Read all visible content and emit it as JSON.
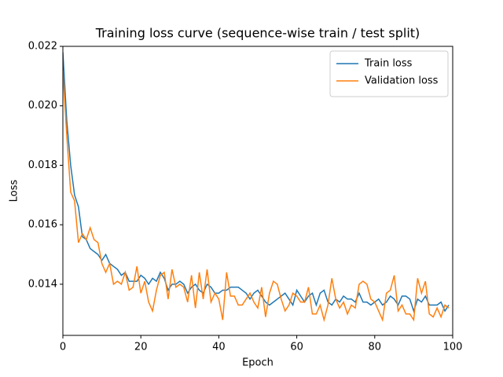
{
  "chart_data": {
    "type": "line",
    "title": "Training loss curve (sequence-wise train / test split)",
    "xlabel": "Epoch",
    "ylabel": "Loss",
    "x": [
      0,
      1,
      2,
      3,
      4,
      5,
      6,
      7,
      8,
      9,
      10,
      11,
      12,
      13,
      14,
      15,
      16,
      17,
      18,
      19,
      20,
      21,
      22,
      23,
      24,
      25,
      26,
      27,
      28,
      29,
      30,
      31,
      32,
      33,
      34,
      35,
      36,
      37,
      38,
      39,
      40,
      41,
      42,
      43,
      44,
      45,
      46,
      47,
      48,
      49,
      50,
      51,
      52,
      53,
      54,
      55,
      56,
      57,
      58,
      59,
      60,
      61,
      62,
      63,
      64,
      65,
      66,
      67,
      68,
      69,
      70,
      71,
      72,
      73,
      74,
      75,
      76,
      77,
      78,
      79,
      80,
      81,
      82,
      83,
      84,
      85,
      86,
      87,
      88,
      89,
      90,
      91,
      92,
      93,
      94,
      95,
      96,
      97,
      98,
      99
    ],
    "series": [
      {
        "name": "Train loss",
        "color": "#1f77b4",
        "values": [
          0.0218,
          0.0195,
          0.018,
          0.017,
          0.0166,
          0.0156,
          0.0155,
          0.0152,
          0.0151,
          0.015,
          0.0148,
          0.015,
          0.0147,
          0.0146,
          0.0145,
          0.0143,
          0.0144,
          0.0141,
          0.0141,
          0.0141,
          0.0143,
          0.0142,
          0.014,
          0.0142,
          0.0141,
          0.0144,
          0.0142,
          0.0138,
          0.014,
          0.014,
          0.0141,
          0.014,
          0.0137,
          0.0139,
          0.014,
          0.0138,
          0.0137,
          0.014,
          0.0139,
          0.0137,
          0.0137,
          0.0138,
          0.0138,
          0.0139,
          0.0139,
          0.0139,
          0.0138,
          0.0137,
          0.0135,
          0.0137,
          0.0138,
          0.0136,
          0.0134,
          0.0133,
          0.0134,
          0.0135,
          0.0136,
          0.0137,
          0.0135,
          0.0133,
          0.0138,
          0.0136,
          0.0134,
          0.0136,
          0.0137,
          0.0133,
          0.0137,
          0.0138,
          0.0134,
          0.0133,
          0.0135,
          0.0134,
          0.0136,
          0.0135,
          0.0135,
          0.0134,
          0.0137,
          0.0134,
          0.0134,
          0.0133,
          0.0134,
          0.0135,
          0.0133,
          0.0134,
          0.0136,
          0.0135,
          0.0133,
          0.0136,
          0.0136,
          0.0135,
          0.0131,
          0.0135,
          0.0134,
          0.0136,
          0.0133,
          0.0133,
          0.0133,
          0.0134,
          0.0131,
          0.0133
        ]
      },
      {
        "name": "Validation loss",
        "color": "#ff7f0e",
        "values": [
          0.0212,
          0.019,
          0.0171,
          0.0168,
          0.0154,
          0.0157,
          0.0155,
          0.0159,
          0.0155,
          0.0154,
          0.0147,
          0.0144,
          0.0147,
          0.014,
          0.0141,
          0.014,
          0.0144,
          0.0138,
          0.0139,
          0.0146,
          0.0137,
          0.0141,
          0.0134,
          0.0131,
          0.0138,
          0.0143,
          0.0144,
          0.0135,
          0.0145,
          0.0139,
          0.014,
          0.0139,
          0.0134,
          0.0143,
          0.0132,
          0.0144,
          0.0135,
          0.0145,
          0.0134,
          0.0137,
          0.0135,
          0.0128,
          0.0144,
          0.0136,
          0.0136,
          0.0133,
          0.0133,
          0.0135,
          0.0137,
          0.0134,
          0.0132,
          0.0139,
          0.0129,
          0.0137,
          0.0141,
          0.014,
          0.0135,
          0.0131,
          0.0133,
          0.0137,
          0.0136,
          0.0134,
          0.0134,
          0.0139,
          0.013,
          0.013,
          0.0133,
          0.0128,
          0.0133,
          0.0142,
          0.0135,
          0.0132,
          0.0134,
          0.013,
          0.0133,
          0.0132,
          0.014,
          0.0141,
          0.014,
          0.0135,
          0.0134,
          0.0131,
          0.0128,
          0.0137,
          0.0138,
          0.0143,
          0.0131,
          0.0133,
          0.013,
          0.013,
          0.0128,
          0.0142,
          0.0137,
          0.0141,
          0.013,
          0.0129,
          0.0132,
          0.0129,
          0.0133,
          0.0132
        ]
      }
    ],
    "xlim": [
      0,
      100
    ],
    "xticks": [
      0,
      20,
      40,
      60,
      80,
      100
    ],
    "ylim": [
      0.01228,
      0.022
    ],
    "yticks": [
      0.014,
      0.016,
      0.018,
      {
        "value": 0.02,
        "label": "0.020"
      },
      0.022
    ],
    "legend": "upper right"
  }
}
